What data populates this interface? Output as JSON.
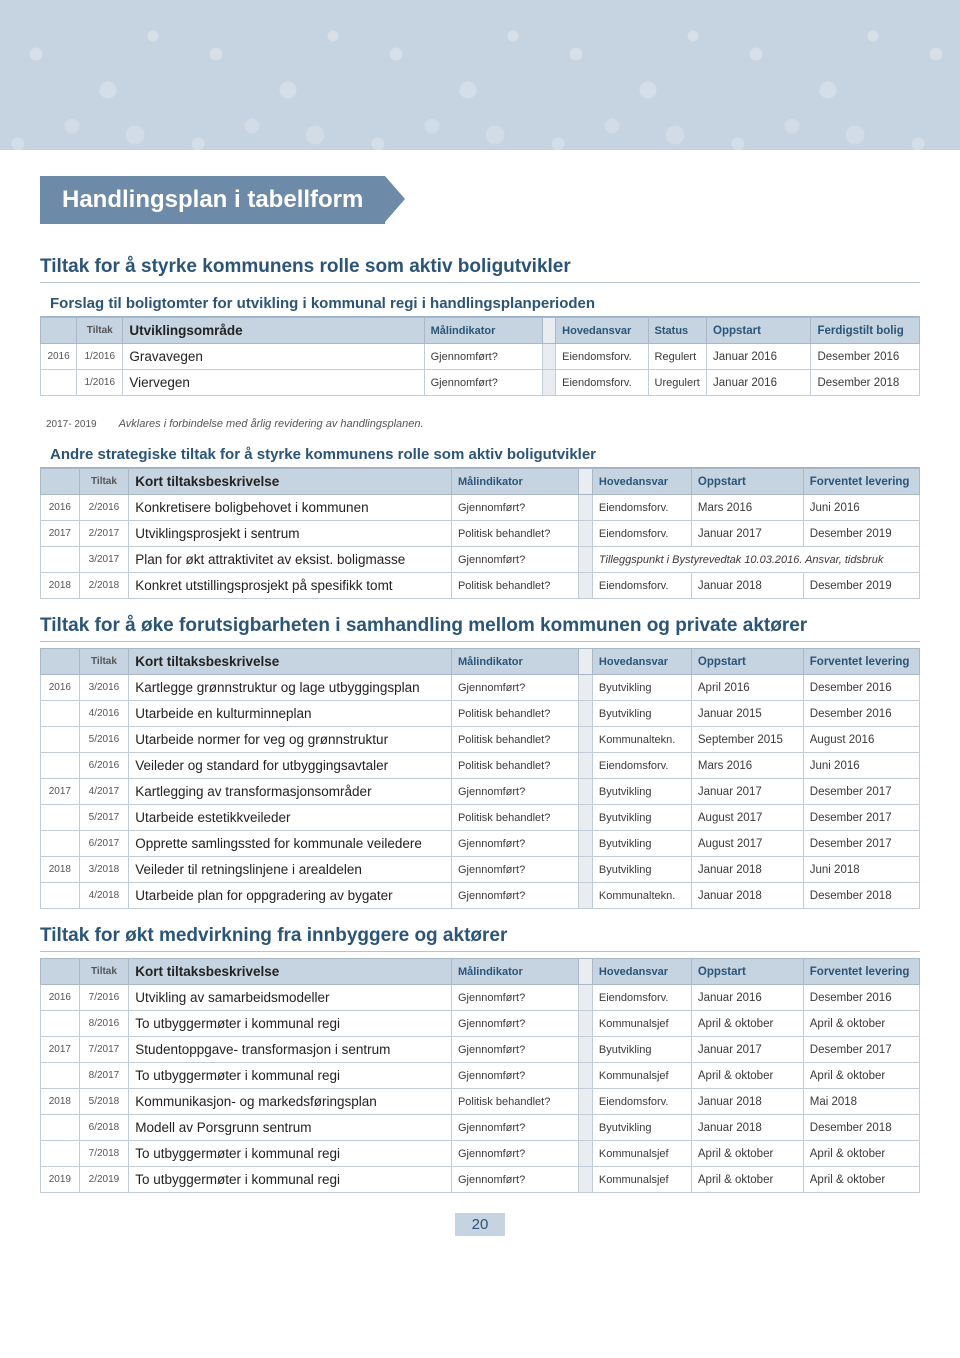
{
  "page_title": "Handlingsplan i tabellform",
  "page_number": "20",
  "colors": {
    "banner_bg": "#c6d3e0",
    "titlebar_bg": "#6d8ba8",
    "heading_text": "#2a5578",
    "header_bg": "#c6d3e0",
    "border": "#c2ccd6"
  },
  "section1": {
    "heading": "Tiltak for å styrke kommunens rolle som aktiv boligutvikler",
    "sub1_title": "Forslag til boligtomter for utvikling i kommunal regi i handlingsplanperioden",
    "columns": [
      "Tiltak",
      "Utviklingsområde",
      "Målindikator",
      "Hovedansvar",
      "Status",
      "Oppstart",
      "Ferdigstilt bolig"
    ],
    "rows": [
      {
        "year": "2016",
        "tiltak": "1/2016",
        "desc": "Gravavegen",
        "mal": "Gjennomført?",
        "hoved": "Eiendomsforv.",
        "status": "Regulert",
        "opp": "Januar 2016",
        "lev": "Desember 2016"
      },
      {
        "year": "",
        "tiltak": "1/2016",
        "desc": "Viervegen",
        "mal": "Gjennomført?",
        "hoved": "Eiendomsforv.",
        "status": "Uregulert",
        "opp": "Januar 2016",
        "lev": "Desember 2018"
      }
    ],
    "note_year": "2017- 2019",
    "note_text": "Avklares i forbindelse med årlig revidering av handlingsplanen.",
    "sub2_title": "Andre strategiske tiltak for å styrke kommunens rolle som aktiv boligutvikler",
    "columns2": [
      "Tiltak",
      "Kort tiltaksbeskrivelse",
      "Målindikator",
      "Hovedansvar",
      "Oppstart",
      "Forventet levering"
    ],
    "rows2": [
      {
        "year": "2016",
        "tiltak": "2/2016",
        "desc": "Konkretisere boligbehovet i kommunen",
        "mal": "Gjennomført?",
        "hoved": "Eiendomsforv.",
        "opp": "Mars 2016",
        "lev": "Juni 2016"
      },
      {
        "year": "2017",
        "tiltak": "2/2017",
        "desc": "Utviklingsprosjekt i sentrum",
        "mal": "Politisk behandlet?",
        "hoved": "Eiendomsforv.",
        "opp": "Januar 2017",
        "lev": "Desember 2019"
      },
      {
        "year": "",
        "tiltak": "3/2017",
        "desc": "Plan for økt attraktivitet av eksist. boligmasse",
        "mal": "Gjennomført?",
        "merged": "Tilleggspunkt i Bystyrevedtak 10.03.2016. Ansvar, tidsbruk"
      },
      {
        "year": "2018",
        "tiltak": "2/2018",
        "desc": "Konkret utstillingsprosjekt på spesifikk tomt",
        "mal": "Politisk behandlet?",
        "hoved": "Eiendomsforv.",
        "opp": "Januar 2018",
        "lev": "Desember 2019"
      }
    ]
  },
  "section2": {
    "heading": "Tiltak for å øke forutsigbarheten i samhandling mellom kommunen og private aktører",
    "columns": [
      "Tiltak",
      "Kort tiltaksbeskrivelse",
      "Målindikator",
      "Hovedansvar",
      "Oppstart",
      "Forventet levering"
    ],
    "rows": [
      {
        "year": "2016",
        "tiltak": "3/2016",
        "desc": "Kartlegge grønnstruktur og lage utbyggingsplan",
        "mal": "Gjennomført?",
        "hoved": "Byutvikling",
        "opp": "April 2016",
        "lev": "Desember 2016"
      },
      {
        "year": "",
        "tiltak": "4/2016",
        "desc": "Utarbeide en kulturminneplan",
        "mal": "Politisk behandlet?",
        "hoved": "Byutvikling",
        "opp": "Januar 2015",
        "lev": "Desember 2016"
      },
      {
        "year": "",
        "tiltak": "5/2016",
        "desc": "Utarbeide normer for veg og grønnstruktur",
        "mal": "Politisk behandlet?",
        "hoved": "Kommunaltekn.",
        "opp": "September 2015",
        "lev": "August 2016"
      },
      {
        "year": "",
        "tiltak": "6/2016",
        "desc": "Veileder og standard for utbyggingsavtaler",
        "mal": "Politisk behandlet?",
        "hoved": "Eiendomsforv.",
        "opp": "Mars 2016",
        "lev": "Juni 2016"
      },
      {
        "year": "2017",
        "tiltak": "4/2017",
        "desc": "Kartlegging av transformasjonsområder",
        "mal": "Gjennomført?",
        "hoved": "Byutvikling",
        "opp": "Januar 2017",
        "lev": "Desember 2017"
      },
      {
        "year": "",
        "tiltak": "5/2017",
        "desc": "Utarbeide estetikkveileder",
        "mal": "Politisk behandlet?",
        "hoved": "Byutvikling",
        "opp": "August 2017",
        "lev": "Desember 2017"
      },
      {
        "year": "",
        "tiltak": "6/2017",
        "desc": "Opprette samlingssted for kommunale veiledere",
        "mal": "Gjennomført?",
        "hoved": "Byutvikling",
        "opp": "August 2017",
        "lev": "Desember 2017"
      },
      {
        "year": "2018",
        "tiltak": "3/2018",
        "desc": "Veileder til retningslinjene i arealdelen",
        "mal": "Gjennomført?",
        "hoved": "Byutvikling",
        "opp": "Januar 2018",
        "lev": "Juni 2018"
      },
      {
        "year": "",
        "tiltak": "4/2018",
        "desc": "Utarbeide plan for oppgradering av bygater",
        "mal": "Gjennomført?",
        "hoved": "Kommunaltekn.",
        "opp": "Januar 2018",
        "lev": "Desember 2018"
      }
    ]
  },
  "section3": {
    "heading": "Tiltak for økt medvirkning fra innbyggere og aktører",
    "columns": [
      "Tiltak",
      "Kort tiltaksbeskrivelse",
      "Målindikator",
      "Hovedansvar",
      "Oppstart",
      "Forventet levering"
    ],
    "rows": [
      {
        "year": "2016",
        "tiltak": "7/2016",
        "desc": "Utvikling av samarbeidsmodeller",
        "mal": "Gjennomført?",
        "hoved": "Eiendomsforv.",
        "opp": "Januar 2016",
        "lev": "Desember 2016"
      },
      {
        "year": "",
        "tiltak": "8/2016",
        "desc": "To utbyggermøter i kommunal regi",
        "mal": "Gjennomført?",
        "hoved": "Kommunalsjef",
        "opp": "April & oktober",
        "lev": "April & oktober"
      },
      {
        "year": "2017",
        "tiltak": "7/2017",
        "desc": "Studentoppgave- transformasjon i sentrum",
        "mal": "Gjennomført?",
        "hoved": "Byutvikling",
        "opp": "Januar 2017",
        "lev": "Desember 2017"
      },
      {
        "year": "",
        "tiltak": "8/2017",
        "desc": "To utbyggermøter i kommunal regi",
        "mal": "Gjennomført?",
        "hoved": "Kommunalsjef",
        "opp": "April & oktober",
        "lev": "April & oktober"
      },
      {
        "year": "2018",
        "tiltak": "5/2018",
        "desc": "Kommunikasjon- og markedsføringsplan",
        "mal": "Politisk behandlet?",
        "hoved": "Eiendomsforv.",
        "opp": "Januar 2018",
        "lev": "Mai 2018"
      },
      {
        "year": "",
        "tiltak": "6/2018",
        "desc": "Modell av Porsgrunn sentrum",
        "mal": "Gjennomført?",
        "hoved": "Byutvikling",
        "opp": "Januar 2018",
        "lev": "Desember 2018"
      },
      {
        "year": "",
        "tiltak": "7/2018",
        "desc": "To utbyggermøter i kommunal regi",
        "mal": "Gjennomført?",
        "hoved": "Kommunalsjef",
        "opp": "April & oktober",
        "lev": "April & oktober"
      },
      {
        "year": "2019",
        "tiltak": "2/2019",
        "desc": "To utbyggermøter i kommunal regi",
        "mal": "Gjennomført?",
        "hoved": "Kommunalsjef",
        "opp": "April & oktober",
        "lev": "April & oktober"
      }
    ]
  }
}
